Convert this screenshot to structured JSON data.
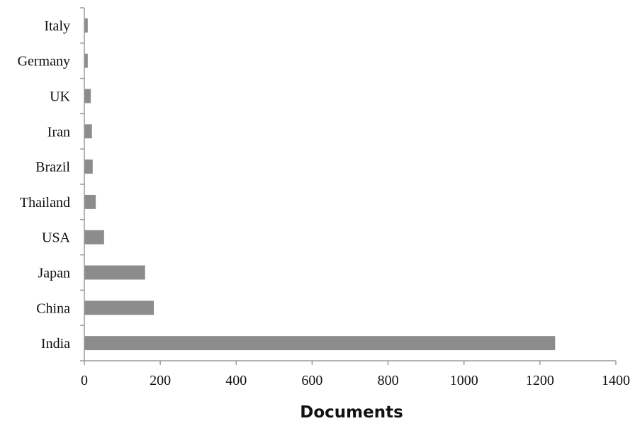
{
  "chart_data": {
    "type": "bar",
    "orientation": "horizontal",
    "categories": [
      "India",
      "China",
      "Japan",
      "USA",
      "Thailand",
      "Brazil",
      "Iran",
      "UK",
      "Germany",
      "Italy"
    ],
    "values": [
      1240,
      183,
      160,
      52,
      30,
      22,
      20,
      17,
      9,
      9
    ],
    "xlabel": "Documents",
    "ylabel": "",
    "xlim": [
      0,
      1400
    ],
    "xticks": [
      0,
      200,
      400,
      600,
      800,
      1000,
      1200,
      1400
    ],
    "grid": false,
    "colors": {
      "bar": "#8c8c8c",
      "axis": "#9a9a9a"
    }
  }
}
